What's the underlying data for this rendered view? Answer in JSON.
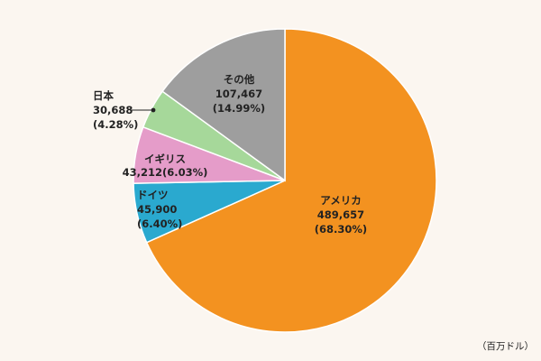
{
  "chart_data": {
    "type": "pie",
    "unit": "（百万ドル）",
    "slices": [
      {
        "label": "アメリカ",
        "value": 489657,
        "value_text": "489,657",
        "percent": 68.3,
        "percent_text": "(68.30%)",
        "color": "#f39220"
      },
      {
        "label": "ドイツ",
        "value": 45900,
        "value_text": "45,900",
        "percent": 6.4,
        "percent_text": "(6.40%)",
        "color": "#2aa9cf"
      },
      {
        "label": "イギリス",
        "value": 43212,
        "value_text": "43,212",
        "percent": 6.03,
        "percent_text": "(6.03%)",
        "color": "#e59cc9"
      },
      {
        "label": "日本",
        "value": 30688,
        "value_text": "30,688",
        "percent": 4.28,
        "percent_text": "(4.28%)",
        "color": "#a6d89a"
      },
      {
        "label": "その他",
        "value": 107467,
        "value_text": "107,467",
        "percent": 14.99,
        "percent_text": "(14.99%)",
        "color": "#9e9e9e"
      }
    ]
  }
}
